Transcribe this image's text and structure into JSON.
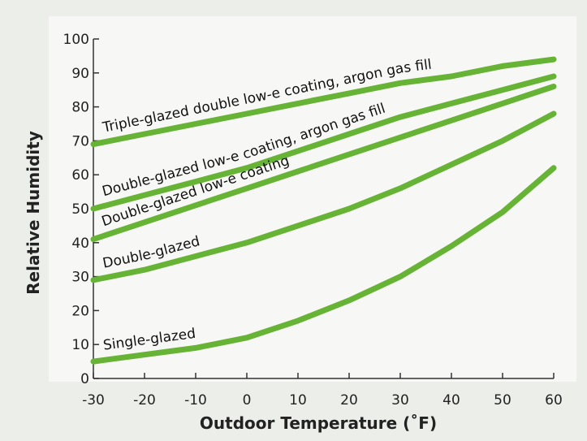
{
  "chart_data": {
    "type": "line",
    "x_label": "Outdoor Temperature (˚F)",
    "y_label": "Relative Humidity",
    "x": [
      -30,
      -20,
      -10,
      0,
      10,
      20,
      30,
      40,
      50,
      60
    ],
    "series": [
      {
        "name": "Triple-glazed double low-e coating, argon gas fill",
        "color": "#66b336",
        "values": [
          69,
          72,
          75,
          78,
          81,
          84,
          87,
          89,
          92,
          94
        ]
      },
      {
        "name": "Double-glazed low-e coating, argon gas fill",
        "color": "#66b336",
        "values": [
          50,
          54,
          58,
          62,
          67,
          72,
          77,
          81,
          85,
          89
        ]
      },
      {
        "name": "Double-glazed low-e coating",
        "color": "#66b336",
        "values": [
          41,
          46,
          51,
          56,
          61,
          66,
          71,
          76,
          81,
          86
        ]
      },
      {
        "name": "Double-glazed",
        "color": "#66b336",
        "values": [
          29,
          32,
          36,
          40,
          45,
          50,
          56,
          63,
          70,
          78
        ]
      },
      {
        "name": "Single-glazed",
        "color": "#66b336",
        "values": [
          5,
          7,
          9,
          12,
          17,
          23,
          30,
          39,
          49,
          62
        ]
      }
    ],
    "xlim": [
      -30,
      60
    ],
    "xticks": [
      -30,
      -20,
      -10,
      0,
      10,
      20,
      30,
      40,
      50,
      60
    ],
    "ylim": [
      0,
      100
    ],
    "yticks": [
      0,
      10,
      20,
      30,
      40,
      50,
      60,
      70,
      80,
      90,
      100
    ],
    "grid": false
  }
}
